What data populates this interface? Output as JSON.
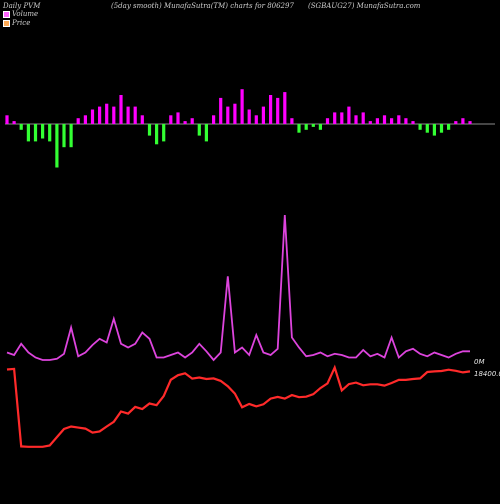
{
  "header": {
    "left": "Daily PVM",
    "center": "(5day smooth) MunafaSutra(TM) charts for 806297",
    "right": "(SGBAUG27) MunafaSutra.com"
  },
  "legend": {
    "volume_label": "Volume",
    "price_label": "Price"
  },
  "colors": {
    "background": "#000000",
    "bar_up": "#ff00ff",
    "bar_down_weak": "#33ff33",
    "bar_down_strong": "#ff2020",
    "volume_line": "#dd44dd",
    "price_line": "#ff2a2a",
    "baseline": "#bbbbbb"
  },
  "chart_data": {
    "type": "line",
    "x_count": 66,
    "volume_line": {
      "name": "Volume",
      "values": [
        22,
        20,
        29,
        22,
        18,
        16,
        16,
        17,
        21,
        42,
        19,
        22,
        28,
        33,
        30,
        49,
        29,
        26,
        29,
        38,
        33,
        18,
        18,
        20,
        22,
        18,
        22,
        29,
        23,
        16,
        22,
        83,
        22,
        26,
        20,
        36,
        22,
        20,
        25,
        132,
        34,
        26,
        19,
        20,
        22,
        19,
        21,
        20,
        18,
        18,
        24,
        19,
        21,
        18,
        34,
        18,
        23,
        25,
        21,
        19,
        22,
        20,
        18,
        21,
        23,
        23
      ]
    },
    "price_line": {
      "name": "Price",
      "values": [
        18500,
        18530,
        14450,
        14430,
        14430,
        14430,
        14500,
        14940,
        15370,
        15500,
        15440,
        15390,
        15180,
        15240,
        15500,
        15750,
        16290,
        16180,
        16530,
        16420,
        16710,
        16620,
        17100,
        17960,
        18200,
        18300,
        18020,
        18080,
        18000,
        18030,
        17900,
        17620,
        17230,
        16510,
        16690,
        16560,
        16670,
        16970,
        17060,
        16970,
        17150,
        17040,
        17070,
        17200,
        17520,
        17770,
        18600,
        17400,
        17730,
        17810,
        17670,
        17720,
        17720,
        17650,
        17790,
        17950,
        17950,
        18000,
        18030,
        18370,
        18400,
        18420,
        18490,
        18430,
        18350,
        18400
      ]
    },
    "bars": {
      "values": [
        3,
        1,
        -2,
        -6,
        -6,
        -5,
        -6,
        -15,
        -8,
        -8,
        2,
        3,
        5,
        6,
        7,
        6,
        10,
        6,
        6,
        3,
        -4,
        -7,
        -6,
        3,
        4,
        1,
        2,
        -4,
        -6,
        3,
        9,
        6,
        7,
        12,
        5,
        3,
        6,
        10,
        9,
        11,
        2,
        -3,
        -2,
        -1,
        -2,
        2,
        4,
        4,
        6,
        3,
        4,
        1,
        2,
        3,
        2,
        3,
        2,
        1,
        -2,
        -3,
        -4,
        -3,
        -2,
        1,
        2,
        1
      ],
      "strong_down_indices": [
        48,
        49,
        50,
        51,
        52,
        53
      ]
    },
    "labels": {
      "volume_level": "0M",
      "price_level": "18400.00"
    }
  }
}
